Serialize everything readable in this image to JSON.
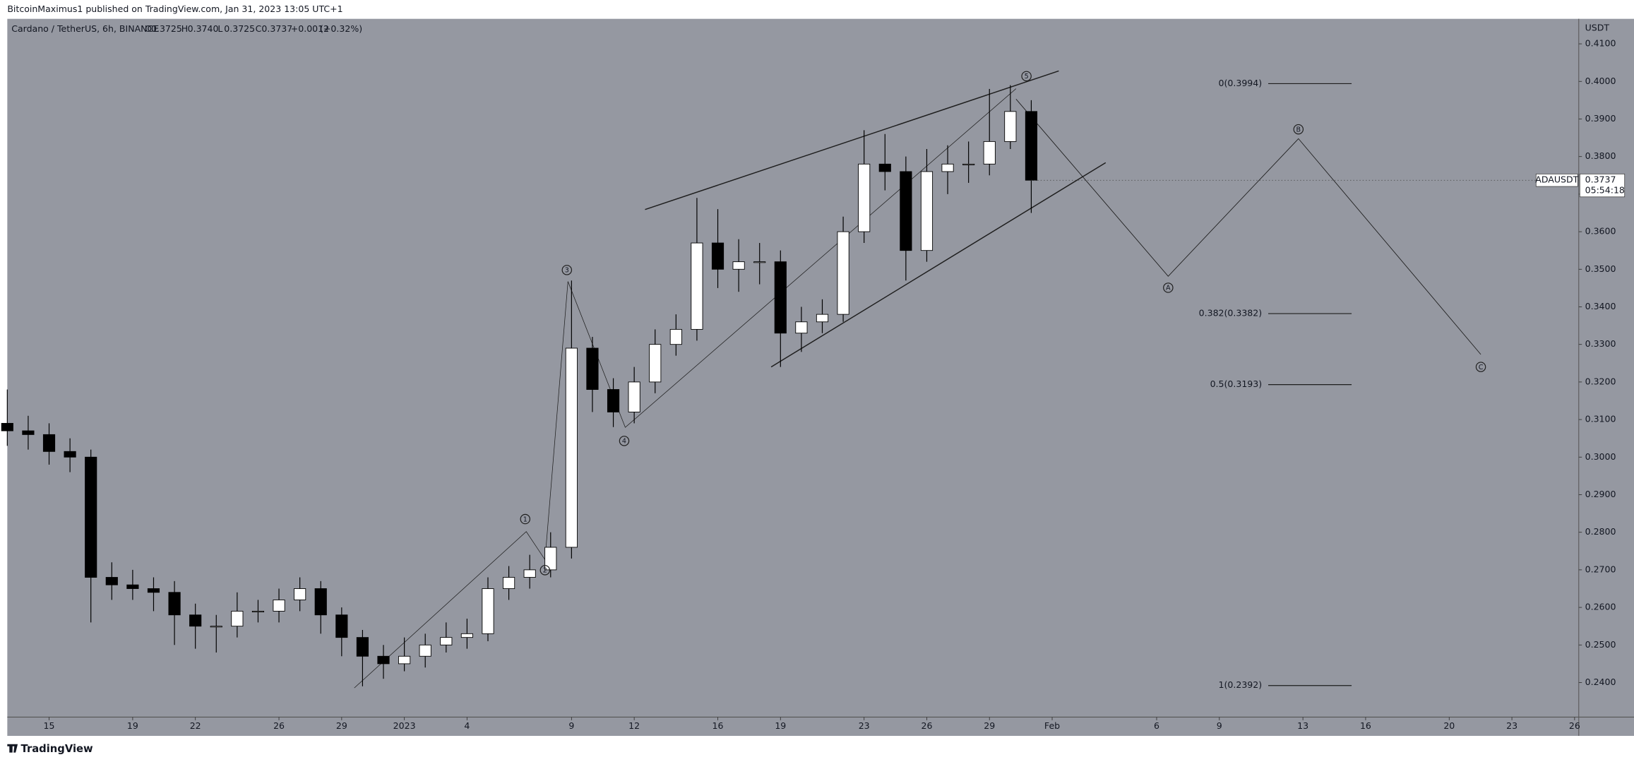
{
  "header": {
    "author_line": "BitcoinMaximus1 published on TradingView.com, Jan 31, 2023 13:05 UTC+1",
    "symbol": "Cardano / TetherUS, 6h, BINANCE",
    "ohlc": [
      {
        "key": "O",
        "value": "0.3725"
      },
      {
        "key": "H",
        "value": "0.3740"
      },
      {
        "key": "L",
        "value": "0.3725"
      },
      {
        "key": "C",
        "value": "0.3737"
      }
    ],
    "change": "+0.0012",
    "change_pct": "(+0.32%)"
  },
  "footer": {
    "brand": "TradingView"
  },
  "chart_data": {
    "type": "candlestick",
    "currency": "USDT",
    "ticker_badge": "ADAUSDT",
    "last_price": "0.3737",
    "countdown": "05:54:18",
    "x": [
      -2,
      -1,
      0,
      1,
      2,
      3,
      4,
      5,
      6,
      7,
      8,
      9,
      10,
      11,
      12,
      13,
      14,
      15,
      16,
      17,
      18,
      19,
      20,
      21,
      22,
      23,
      24,
      25,
      26,
      27,
      28,
      29,
      30,
      31,
      32,
      33,
      34,
      35,
      36,
      37,
      38,
      39,
      40,
      41,
      42,
      43,
      44,
      45,
      46,
      47
    ],
    "open": [
      0.309,
      0.307,
      0.306,
      0.3015,
      0.3,
      0.268,
      0.266,
      0.265,
      0.264,
      0.258,
      0.255,
      0.255,
      0.259,
      0.259,
      0.262,
      0.265,
      0.258,
      0.252,
      0.247,
      0.245,
      0.247,
      0.25,
      0.252,
      0.253,
      0.265,
      0.268,
      0.27,
      0.276,
      0.329,
      0.318,
      0.312,
      0.32,
      0.33,
      0.334,
      0.357,
      0.35,
      0.352,
      0.352,
      0.333,
      0.336,
      0.338,
      0.36,
      0.378,
      0.376,
      0.355,
      0.376,
      0.378,
      0.378,
      0.384,
      0.392
    ],
    "high": [
      0.318,
      0.311,
      0.309,
      0.305,
      0.302,
      0.272,
      0.27,
      0.268,
      0.267,
      0.261,
      0.258,
      0.264,
      0.262,
      0.265,
      0.268,
      0.267,
      0.26,
      0.254,
      0.25,
      0.252,
      0.253,
      0.256,
      0.257,
      0.268,
      0.271,
      0.274,
      0.28,
      0.347,
      0.332,
      0.321,
      0.324,
      0.334,
      0.338,
      0.369,
      0.366,
      0.358,
      0.357,
      0.355,
      0.34,
      0.342,
      0.364,
      0.387,
      0.386,
      0.38,
      0.382,
      0.383,
      0.384,
      0.398,
      0.399,
      0.395
    ],
    "low": [
      0.303,
      0.302,
      0.298,
      0.296,
      0.256,
      0.262,
      0.262,
      0.259,
      0.25,
      0.249,
      0.248,
      0.252,
      0.256,
      0.256,
      0.259,
      0.253,
      0.247,
      0.239,
      0.241,
      0.243,
      0.244,
      0.248,
      0.249,
      0.251,
      0.262,
      0.265,
      0.268,
      0.273,
      0.312,
      0.308,
      0.309,
      0.317,
      0.327,
      0.331,
      0.345,
      0.344,
      0.346,
      0.324,
      0.328,
      0.333,
      0.336,
      0.357,
      0.371,
      0.347,
      0.352,
      0.37,
      0.373,
      0.375,
      0.382,
      0.365
    ],
    "close": [
      0.307,
      0.306,
      0.3015,
      0.3,
      0.268,
      0.266,
      0.265,
      0.264,
      0.258,
      0.255,
      0.255,
      0.259,
      0.259,
      0.262,
      0.265,
      0.258,
      0.252,
      0.247,
      0.245,
      0.247,
      0.25,
      0.252,
      0.253,
      0.265,
      0.268,
      0.27,
      0.276,
      0.329,
      0.318,
      0.312,
      0.32,
      0.33,
      0.334,
      0.357,
      0.35,
      0.352,
      0.352,
      0.333,
      0.336,
      0.338,
      0.36,
      0.378,
      0.376,
      0.355,
      0.376,
      0.378,
      0.378,
      0.384,
      0.392,
      0.3737
    ],
    "up_color": "#ffffff",
    "down_color": "#000000",
    "background": "#9598a1",
    "ylim": [
      0.2308,
      0.4161
    ],
    "yticks": [
      {
        "value": 0.24,
        "label": "0.2400"
      },
      {
        "value": 0.25,
        "label": "0.2500"
      },
      {
        "value": 0.26,
        "label": "0.2600"
      },
      {
        "value": 0.27,
        "label": "0.2700"
      },
      {
        "value": 0.28,
        "label": "0.2800"
      },
      {
        "value": 0.29,
        "label": "0.2900"
      },
      {
        "value": 0.3,
        "label": "0.3000"
      },
      {
        "value": 0.31,
        "label": "0.3100"
      },
      {
        "value": 0.32,
        "label": "0.3200"
      },
      {
        "value": 0.33,
        "label": "0.3300"
      },
      {
        "value": 0.34,
        "label": "0.3400"
      },
      {
        "value": 0.35,
        "label": "0.3500"
      },
      {
        "value": 0.36,
        "label": "0.3600"
      },
      {
        "value": 0.37,
        "label": "0.3700"
      },
      {
        "value": 0.38,
        "label": "0.3800"
      },
      {
        "value": 0.39,
        "label": "0.3900"
      },
      {
        "value": 0.4,
        "label": "0.4000"
      },
      {
        "value": 0.41,
        "label": "0.4100"
      }
    ],
    "xlim": [
      -2,
      73.2
    ],
    "xticks": [
      {
        "value": 0,
        "label": "15"
      },
      {
        "value": 4,
        "label": "19"
      },
      {
        "value": 7,
        "label": "22"
      },
      {
        "value": 11,
        "label": "26"
      },
      {
        "value": 14,
        "label": "29"
      },
      {
        "value": 17,
        "label": "2023"
      },
      {
        "value": 20,
        "label": "4"
      },
      {
        "value": 25,
        "label": "9"
      },
      {
        "value": 28,
        "label": "12"
      },
      {
        "value": 32,
        "label": "16"
      },
      {
        "value": 35,
        "label": "19"
      },
      {
        "value": 39,
        "label": "23"
      },
      {
        "value": 42,
        "label": "26"
      },
      {
        "value": 45,
        "label": "29"
      },
      {
        "value": 48,
        "label": "Feb"
      },
      {
        "value": 53,
        "label": "6"
      },
      {
        "value": 56,
        "label": "9"
      },
      {
        "value": 60,
        "label": "13"
      },
      {
        "value": 63,
        "label": "16"
      },
      {
        "value": 67,
        "label": "20"
      },
      {
        "value": 70,
        "label": "23"
      },
      {
        "value": 73,
        "label": "26"
      }
    ],
    "fib_levels": [
      {
        "value": 0.3994,
        "label": "0(0.3994)"
      },
      {
        "value": 0.3382,
        "label": "0.382(0.3382)"
      },
      {
        "value": 0.3193,
        "label": "0.5(0.3193)"
      },
      {
        "value": 0.2392,
        "label": "1(0.2392)"
      }
    ],
    "wave_labels": [
      "1",
      "2",
      "3",
      "4",
      "5",
      "A",
      "B",
      "C"
    ]
  }
}
